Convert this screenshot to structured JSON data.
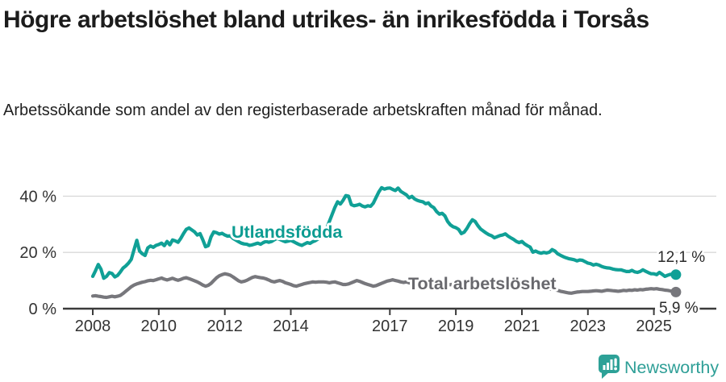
{
  "header": {
    "title": "Högre arbetslöshet bland utrikes- än inrikesfödda i Torsås",
    "subtitle": "Arbetssökande som andel av den registerbaserade arbetskraften månad för månad."
  },
  "footer": {
    "brand": "Newsworthy",
    "logo_icon": "bar-chart-speech-bubble-icon"
  },
  "colors": {
    "teal_line": "#10a096",
    "teal_label": "#0d9c92",
    "gray_line": "#77777c",
    "gray_label": "#68686d",
    "grid": "#d9d9d9",
    "axis": "#3b3b3b",
    "text": "#1c1c1c",
    "brand_teal": "#2da197"
  },
  "chart_data": {
    "type": "line",
    "x_unit": "month",
    "x_start": "2008-01",
    "x_end": "2025-09",
    "grid": "horizontal",
    "ylim": [
      0,
      45
    ],
    "x_tick_years": [
      2008,
      2010,
      2012,
      2014,
      2017,
      2019,
      2021,
      2023,
      2025
    ],
    "x_tick_labels": [
      "2008",
      "2010",
      "2012",
      "2014",
      "2017",
      "2019",
      "2021",
      "2023",
      "2025"
    ],
    "y_ticks": [
      {
        "value": 0,
        "label": "0 %"
      },
      {
        "value": 20,
        "label": "20 %"
      },
      {
        "value": 40,
        "label": "40 %"
      }
    ],
    "series": [
      {
        "name": "Utlandsfödda",
        "color": "#10a096",
        "last_value": 12.1,
        "end_label": "12,1 %",
        "values": [
          11.5,
          13.5,
          15.7,
          14.0,
          10.8,
          11.5,
          12.8,
          12.5,
          11.3,
          11.8,
          13.0,
          14.4,
          15.2,
          16.2,
          17.5,
          21.0,
          24.3,
          20.5,
          19.5,
          18.9,
          21.6,
          22.3,
          21.8,
          22.5,
          22.8,
          23.3,
          22.4,
          23.9,
          22.7,
          24.4,
          24.1,
          23.6,
          25.0,
          26.7,
          28.2,
          28.7,
          28.0,
          27.3,
          26.2,
          26.7,
          24.5,
          22.0,
          22.4,
          25.5,
          27.3,
          27.0,
          26.5,
          26.8,
          26.2,
          25.8,
          25.9,
          25.0,
          24.4,
          23.8,
          23.3,
          23.0,
          22.9,
          22.5,
          22.7,
          23.0,
          23.3,
          22.9,
          23.5,
          23.9,
          23.6,
          23.9,
          24.5,
          25.0,
          24.6,
          24.2,
          23.8,
          24.0,
          24.3,
          23.8,
          23.3,
          22.8,
          22.5,
          23.0,
          23.5,
          23.2,
          23.8,
          24.2,
          24.8,
          25.5,
          26.8,
          28.5,
          31.0,
          33.5,
          36.0,
          38.0,
          37.2,
          38.5,
          40.2,
          40.0,
          37.0,
          36.6,
          36.8,
          37.1,
          36.5,
          36.2,
          36.6,
          36.4,
          37.5,
          39.5,
          41.5,
          43.0,
          42.5,
          42.8,
          42.9,
          42.4,
          42.0,
          42.9,
          41.7,
          41.1,
          40.5,
          39.4,
          39.9,
          39.0,
          38.5,
          38.2,
          38.0,
          37.3,
          37.6,
          36.5,
          35.9,
          34.5,
          33.6,
          33.9,
          33.0,
          31.0,
          29.8,
          29.1,
          28.8,
          28.2,
          26.7,
          27.2,
          28.5,
          30.2,
          31.6,
          31.0,
          29.5,
          28.3,
          27.6,
          26.9,
          26.3,
          25.9,
          25.2,
          25.6,
          26.0,
          26.2,
          26.6,
          25.8,
          25.2,
          24.6,
          23.9,
          23.5,
          23.9,
          23.0,
          22.4,
          21.9,
          20.1,
          20.5,
          20.0,
          19.7,
          20.0,
          19.8,
          20.1,
          21.0,
          20.5,
          19.5,
          19.0,
          18.5,
          18.1,
          17.8,
          17.6,
          17.4,
          17.0,
          17.3,
          17.2,
          16.7,
          16.2,
          16.0,
          15.5,
          15.8,
          15.5,
          15.0,
          14.7,
          14.5,
          14.4,
          14.1,
          13.9,
          13.8,
          13.8,
          13.5,
          13.2,
          13.2,
          13.6,
          13.1,
          12.9,
          13.2,
          13.8,
          13.3,
          12.8,
          12.4,
          12.4,
          12.1,
          12.9,
          12.2,
          11.5,
          11.9,
          12.2,
          12.0,
          12.1
        ]
      },
      {
        "name": "Total arbetslöshet",
        "color": "#77777c",
        "last_value": 5.9,
        "end_label": "5,9 %",
        "values": [
          4.5,
          4.6,
          4.4,
          4.3,
          4.1,
          4.0,
          4.2,
          4.4,
          4.2,
          4.4,
          4.7,
          5.4,
          6.2,
          7.0,
          7.8,
          8.4,
          8.8,
          9.1,
          9.4,
          9.6,
          9.9,
          10.1,
          10.0,
          10.3,
          10.6,
          10.9,
          10.5,
          10.2,
          10.5,
          10.8,
          10.4,
          10.1,
          10.4,
          10.8,
          11.0,
          10.7,
          10.3,
          9.9,
          9.5,
          9.0,
          8.4,
          8.0,
          8.3,
          9.0,
          10.0,
          11.0,
          11.7,
          12.1,
          12.4,
          12.2,
          11.9,
          11.3,
          10.6,
          9.9,
          9.5,
          9.7,
          10.1,
          10.6,
          11.1,
          11.4,
          11.2,
          11.0,
          10.9,
          10.6,
          10.2,
          9.7,
          9.5,
          9.8,
          10.0,
          9.7,
          9.2,
          8.9,
          8.6,
          8.2,
          8.0,
          8.3,
          8.6,
          8.9,
          9.1,
          9.3,
          9.5,
          9.4,
          9.5,
          9.5,
          9.5,
          9.4,
          9.2,
          9.4,
          9.5,
          9.2,
          8.9,
          8.6,
          8.6,
          8.8,
          9.2,
          9.6,
          10.0,
          9.7,
          9.3,
          8.9,
          8.6,
          8.3,
          8.0,
          8.2,
          8.6,
          9.0,
          9.4,
          9.8,
          10.0,
          10.3,
          10.0,
          9.8,
          9.5,
          9.3,
          9.5,
          9.2,
          9.0,
          9.1,
          8.9,
          8.8,
          8.7,
          8.5,
          8.4,
          8.6,
          8.8,
          8.5,
          8.3,
          8.1,
          8.4,
          8.6,
          8.5,
          8.7,
          8.6,
          8.8,
          9.0,
          8.7,
          8.5,
          8.8,
          9.0,
          8.9,
          8.7,
          8.5,
          8.6,
          8.8,
          9.0,
          9.2,
          9.5,
          9.8,
          9.6,
          9.4,
          9.7,
          9.5,
          9.2,
          9.0,
          8.8,
          8.7,
          8.9,
          8.7,
          8.5,
          8.3,
          8.0,
          7.8,
          7.6,
          7.4,
          7.2,
          7.0,
          6.9,
          7.0,
          6.8,
          6.5,
          6.2,
          6.0,
          5.8,
          5.6,
          5.5,
          5.7,
          5.9,
          6.0,
          6.1,
          6.1,
          6.1,
          6.2,
          6.3,
          6.4,
          6.3,
          6.2,
          6.4,
          6.6,
          6.5,
          6.4,
          6.3,
          6.2,
          6.3,
          6.5,
          6.4,
          6.6,
          6.5,
          6.7,
          6.6,
          6.8,
          6.7,
          6.9,
          7.0,
          7.1,
          7.0,
          7.1,
          6.9,
          6.8,
          6.6,
          6.5,
          6.3,
          6.1,
          5.9
        ]
      }
    ]
  }
}
